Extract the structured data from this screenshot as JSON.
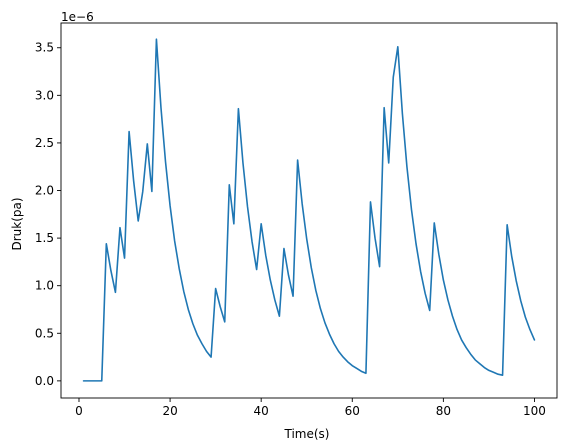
{
  "chart_data": {
    "type": "line",
    "title": "",
    "xlabel": "Time(s)",
    "ylabel": "Druk(pa)",
    "y_offset_label": "1e−6",
    "xlim": [
      -3.95,
      104.95
    ],
    "ylim": [
      -0.18,
      3.76
    ],
    "y_scale_note": "values shown in units of 1e-6",
    "xticks": [
      0,
      20,
      40,
      60,
      80,
      100
    ],
    "xtick_labels": [
      "0",
      "20",
      "40",
      "60",
      "80",
      "100"
    ],
    "yticks": [
      0.0,
      0.5,
      1.0,
      1.5,
      2.0,
      2.5,
      3.0,
      3.5
    ],
    "ytick_labels": [
      "0.0",
      "0.5",
      "1.0",
      "1.5",
      "2.0",
      "2.5",
      "3.0",
      "3.5"
    ],
    "grid": false,
    "legend": "none",
    "line_color": "#1f77b4",
    "series": [
      {
        "x": [
          1,
          2,
          3,
          4,
          5,
          6,
          7,
          8,
          9,
          10,
          11,
          12,
          13,
          14,
          15,
          16,
          17,
          18,
          19,
          20,
          21,
          22,
          23,
          24,
          25,
          26,
          27,
          28,
          29,
          30,
          31,
          32,
          33,
          34,
          35,
          36,
          37,
          38,
          39,
          40,
          41,
          42,
          43,
          44,
          45,
          46,
          47,
          48,
          49,
          50,
          51,
          52,
          53,
          54,
          55,
          56,
          57,
          58,
          59,
          60,
          61,
          62,
          63,
          64,
          65,
          66,
          67,
          68,
          69,
          70,
          71,
          72,
          73,
          74,
          75,
          76,
          77,
          78,
          79,
          80,
          81,
          82,
          83,
          84,
          85,
          86,
          87,
          88,
          89,
          90,
          91,
          92,
          93,
          94,
          95,
          96,
          97,
          98,
          99,
          100
        ],
        "y": [
          0.0,
          0.0,
          0.0,
          0.0,
          0.0,
          1.44,
          1.16,
          0.93,
          1.61,
          1.29,
          2.62,
          2.1,
          1.68,
          1.99,
          2.49,
          1.99,
          3.59,
          2.87,
          2.3,
          1.84,
          1.47,
          1.18,
          0.94,
          0.75,
          0.6,
          0.48,
          0.39,
          0.31,
          0.25,
          0.97,
          0.78,
          0.62,
          2.06,
          1.65,
          2.86,
          2.29,
          1.83,
          1.46,
          1.17,
          1.65,
          1.32,
          1.06,
          0.85,
          0.68,
          1.39,
          1.11,
          0.89,
          2.32,
          1.86,
          1.49,
          1.19,
          0.95,
          0.76,
          0.61,
          0.49,
          0.39,
          0.31,
          0.25,
          0.2,
          0.16,
          0.13,
          0.1,
          0.08,
          1.88,
          1.5,
          1.2,
          2.87,
          2.29,
          3.19,
          3.51,
          2.81,
          2.25,
          1.8,
          1.44,
          1.15,
          0.92,
          0.74,
          1.66,
          1.33,
          1.06,
          0.85,
          0.68,
          0.54,
          0.43,
          0.35,
          0.28,
          0.22,
          0.18,
          0.14,
          0.11,
          0.09,
          0.07,
          0.06,
          1.64,
          1.31,
          1.05,
          0.84,
          0.67,
          0.54,
          0.43
        ]
      }
    ]
  }
}
